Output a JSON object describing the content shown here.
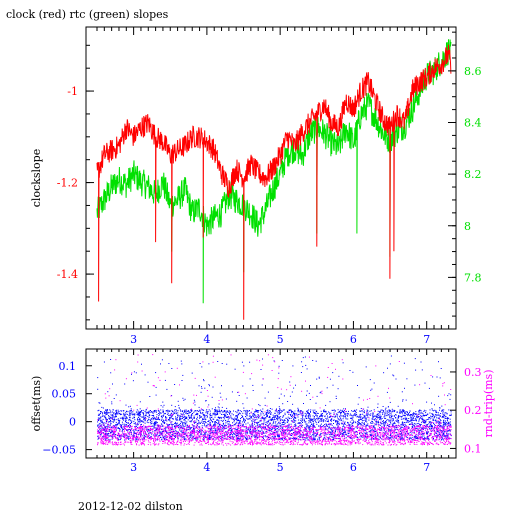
{
  "chart_data": [
    {
      "type": "line",
      "title": "clock (red) rtc (green) slopes",
      "xlabel": "",
      "ylabel": "clockslope",
      "y2label": "",
      "xlim": [
        2.35,
        7.4
      ],
      "ylim": [
        -1.52,
        -0.86
      ],
      "y2lim": [
        7.6,
        8.77
      ],
      "xticks": [
        3,
        4,
        5,
        6,
        7
      ],
      "yticks": [
        -1.4,
        -1.2,
        -1
      ],
      "y2ticks": [
        7.8,
        8,
        8.2,
        8.4,
        8.6
      ],
      "colors": {
        "clock": "#ff0000",
        "rtc": "#00e000",
        "axis": "#000000",
        "left_ticks": "#ff0000",
        "right_ticks": "#00e000",
        "bottom_ticks": "#0000ff"
      },
      "series": [
        {
          "axis": "left",
          "x": [
            2.5,
            2.6,
            2.7,
            2.8,
            2.9,
            3.0,
            3.1,
            3.2,
            3.3,
            3.4,
            3.5,
            3.6,
            3.7,
            3.8,
            3.9,
            4.0,
            4.1,
            4.2,
            4.3,
            4.4,
            4.5,
            4.6,
            4.7,
            4.8,
            4.9,
            5.0,
            5.1,
            5.2,
            5.3,
            5.4,
            5.5,
            5.6,
            5.7,
            5.8,
            5.9,
            6.0,
            6.1,
            6.2,
            6.3,
            6.4,
            6.5,
            6.6,
            6.7,
            6.8,
            6.9,
            7.0,
            7.1,
            7.2,
            7.3,
            7.33
          ],
          "y": [
            -1.18,
            -1.14,
            -1.13,
            -1.12,
            -1.08,
            -1.1,
            -1.08,
            -1.07,
            -1.1,
            -1.11,
            -1.14,
            -1.13,
            -1.12,
            -1.1,
            -1.1,
            -1.11,
            -1.13,
            -1.18,
            -1.21,
            -1.17,
            -1.19,
            -1.16,
            -1.18,
            -1.19,
            -1.17,
            -1.14,
            -1.1,
            -1.12,
            -1.09,
            -1.07,
            -1.05,
            -1.03,
            -1.07,
            -1.08,
            -1.02,
            -1.04,
            -1.0,
            -0.98,
            -1.02,
            -1.06,
            -1.08,
            -1.05,
            -1.07,
            -1.0,
            -0.98,
            -0.97,
            -0.95,
            -0.94,
            -0.92,
            -0.95
          ],
          "spikes_x": [
            2.52,
            3.3,
            3.52,
            3.95,
            4.5,
            5.5,
            6.5,
            6.55
          ],
          "spikes_y": [
            -1.46,
            -1.33,
            -1.42,
            -1.32,
            -1.5,
            -1.34,
            -1.41,
            -1.35
          ]
        },
        {
          "axis": "right",
          "x": [
            2.5,
            2.6,
            2.7,
            2.8,
            2.9,
            3.0,
            3.1,
            3.2,
            3.3,
            3.4,
            3.5,
            3.6,
            3.7,
            3.8,
            3.9,
            4.0,
            4.1,
            4.2,
            4.3,
            4.4,
            4.5,
            4.6,
            4.7,
            4.8,
            4.9,
            5.0,
            5.1,
            5.2,
            5.3,
            5.4,
            5.5,
            5.6,
            5.7,
            5.8,
            5.9,
            6.0,
            6.1,
            6.2,
            6.3,
            6.4,
            6.5,
            6.6,
            6.7,
            6.8,
            6.9,
            7.0,
            7.1,
            7.2,
            7.3,
            7.33
          ],
          "y": [
            8.05,
            8.1,
            8.15,
            8.18,
            8.16,
            8.2,
            8.17,
            8.15,
            8.12,
            8.17,
            8.08,
            8.1,
            8.14,
            8.05,
            8.07,
            8.0,
            8.03,
            8.05,
            8.12,
            8.1,
            8.08,
            8.05,
            8.0,
            8.06,
            8.14,
            8.2,
            8.28,
            8.3,
            8.27,
            8.35,
            8.38,
            8.36,
            8.32,
            8.3,
            8.38,
            8.32,
            8.43,
            8.47,
            8.42,
            8.36,
            8.33,
            8.37,
            8.39,
            8.45,
            8.52,
            8.58,
            8.6,
            8.64,
            8.68,
            8.66
          ],
          "spikes_x": [
            3.52,
            3.95,
            4.5,
            5.5,
            6.05,
            6.5
          ],
          "spikes_y": [
            7.9,
            7.7,
            7.82,
            7.97,
            7.97,
            7.88
          ]
        }
      ]
    },
    {
      "type": "scatter",
      "xlabel": "",
      "ylabel": "offset(ms)",
      "y2label": "rnd-trip(ms)",
      "xlim": [
        2.35,
        7.4
      ],
      "ylim": [
        -0.065,
        0.13
      ],
      "y2lim": [
        0.075,
        0.36
      ],
      "xticks": [
        3,
        4,
        5,
        6,
        7
      ],
      "yticks": [
        -0.05,
        0,
        0.05,
        0.1
      ],
      "ytick_labels": [
        "−0.05",
        "0",
        "0.05",
        "0.1"
      ],
      "y2ticks": [
        0.1,
        0.2,
        0.3
      ],
      "colors": {
        "offset": "#0000ff",
        "rndtrip": "#ff00ff"
      },
      "series": [
        {
          "axis": "left",
          "x_range": [
            2.5,
            7.33
          ],
          "band": [
            -0.032,
            0.022
          ],
          "outlier_band": [
            0.022,
            0.12
          ]
        },
        {
          "axis": "right",
          "x_range": [
            2.5,
            7.33
          ],
          "band": [
            0.11,
            0.16
          ],
          "outlier_band": [
            0.16,
            0.36
          ]
        }
      ]
    }
  ],
  "footer": "2012-12-02 dilston"
}
